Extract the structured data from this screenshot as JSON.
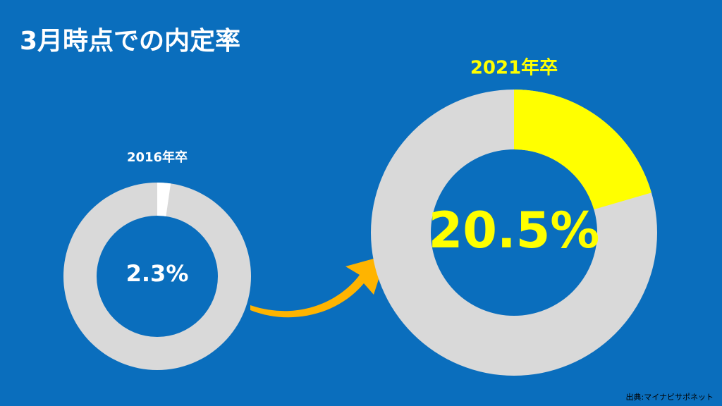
{
  "title": "3月時点での内定率",
  "source": "出典:マイナビサポネット",
  "chart_data": [
    {
      "type": "donut",
      "title": "2016年卒",
      "values": [
        2.3
      ],
      "value_labels": [
        "2.3%"
      ],
      "color": "#ffffff"
    },
    {
      "type": "donut",
      "title": "2021年卒",
      "values": [
        20.5
      ],
      "value_labels": [
        "20.5%"
      ],
      "color": "#ffff00"
    }
  ]
}
